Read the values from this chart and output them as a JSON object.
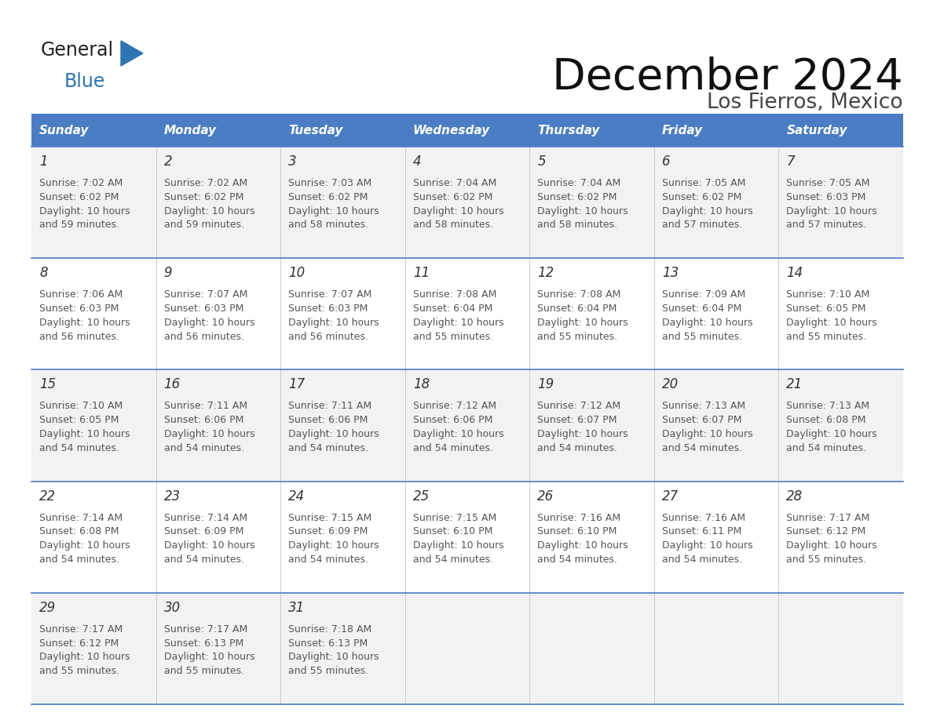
{
  "title": "December 2024",
  "subtitle": "Los Fierros, Mexico",
  "header_color": "#4A7DC4",
  "header_text_color": "#FFFFFF",
  "days_of_week": [
    "Sunday",
    "Monday",
    "Tuesday",
    "Wednesday",
    "Thursday",
    "Friday",
    "Saturday"
  ],
  "row_colors": [
    "#F2F2F2",
    "#FFFFFF",
    "#F2F2F2",
    "#FFFFFF",
    "#F2F2F2"
  ],
  "grid_line_color": "#4A7DC4",
  "day_number_color": "#333333",
  "cell_text_color": "#555555",
  "calendar_data": [
    [
      {
        "day": 1,
        "sunrise": "7:02 AM",
        "sunset": "6:02 PM",
        "daylight_hours": "10 hours",
        "daylight_mins": "and 59 minutes."
      },
      {
        "day": 2,
        "sunrise": "7:02 AM",
        "sunset": "6:02 PM",
        "daylight_hours": "10 hours",
        "daylight_mins": "and 59 minutes."
      },
      {
        "day": 3,
        "sunrise": "7:03 AM",
        "sunset": "6:02 PM",
        "daylight_hours": "10 hours",
        "daylight_mins": "and 58 minutes."
      },
      {
        "day": 4,
        "sunrise": "7:04 AM",
        "sunset": "6:02 PM",
        "daylight_hours": "10 hours",
        "daylight_mins": "and 58 minutes."
      },
      {
        "day": 5,
        "sunrise": "7:04 AM",
        "sunset": "6:02 PM",
        "daylight_hours": "10 hours",
        "daylight_mins": "and 58 minutes."
      },
      {
        "day": 6,
        "sunrise": "7:05 AM",
        "sunset": "6:02 PM",
        "daylight_hours": "10 hours",
        "daylight_mins": "and 57 minutes."
      },
      {
        "day": 7,
        "sunrise": "7:05 AM",
        "sunset": "6:03 PM",
        "daylight_hours": "10 hours",
        "daylight_mins": "and 57 minutes."
      }
    ],
    [
      {
        "day": 8,
        "sunrise": "7:06 AM",
        "sunset": "6:03 PM",
        "daylight_hours": "10 hours",
        "daylight_mins": "and 56 minutes."
      },
      {
        "day": 9,
        "sunrise": "7:07 AM",
        "sunset": "6:03 PM",
        "daylight_hours": "10 hours",
        "daylight_mins": "and 56 minutes."
      },
      {
        "day": 10,
        "sunrise": "7:07 AM",
        "sunset": "6:03 PM",
        "daylight_hours": "10 hours",
        "daylight_mins": "and 56 minutes."
      },
      {
        "day": 11,
        "sunrise": "7:08 AM",
        "sunset": "6:04 PM",
        "daylight_hours": "10 hours",
        "daylight_mins": "and 55 minutes."
      },
      {
        "day": 12,
        "sunrise": "7:08 AM",
        "sunset": "6:04 PM",
        "daylight_hours": "10 hours",
        "daylight_mins": "and 55 minutes."
      },
      {
        "day": 13,
        "sunrise": "7:09 AM",
        "sunset": "6:04 PM",
        "daylight_hours": "10 hours",
        "daylight_mins": "and 55 minutes."
      },
      {
        "day": 14,
        "sunrise": "7:10 AM",
        "sunset": "6:05 PM",
        "daylight_hours": "10 hours",
        "daylight_mins": "and 55 minutes."
      }
    ],
    [
      {
        "day": 15,
        "sunrise": "7:10 AM",
        "sunset": "6:05 PM",
        "daylight_hours": "10 hours",
        "daylight_mins": "and 54 minutes."
      },
      {
        "day": 16,
        "sunrise": "7:11 AM",
        "sunset": "6:06 PM",
        "daylight_hours": "10 hours",
        "daylight_mins": "and 54 minutes."
      },
      {
        "day": 17,
        "sunrise": "7:11 AM",
        "sunset": "6:06 PM",
        "daylight_hours": "10 hours",
        "daylight_mins": "and 54 minutes."
      },
      {
        "day": 18,
        "sunrise": "7:12 AM",
        "sunset": "6:06 PM",
        "daylight_hours": "10 hours",
        "daylight_mins": "and 54 minutes."
      },
      {
        "day": 19,
        "sunrise": "7:12 AM",
        "sunset": "6:07 PM",
        "daylight_hours": "10 hours",
        "daylight_mins": "and 54 minutes."
      },
      {
        "day": 20,
        "sunrise": "7:13 AM",
        "sunset": "6:07 PM",
        "daylight_hours": "10 hours",
        "daylight_mins": "and 54 minutes."
      },
      {
        "day": 21,
        "sunrise": "7:13 AM",
        "sunset": "6:08 PM",
        "daylight_hours": "10 hours",
        "daylight_mins": "and 54 minutes."
      }
    ],
    [
      {
        "day": 22,
        "sunrise": "7:14 AM",
        "sunset": "6:08 PM",
        "daylight_hours": "10 hours",
        "daylight_mins": "and 54 minutes."
      },
      {
        "day": 23,
        "sunrise": "7:14 AM",
        "sunset": "6:09 PM",
        "daylight_hours": "10 hours",
        "daylight_mins": "and 54 minutes."
      },
      {
        "day": 24,
        "sunrise": "7:15 AM",
        "sunset": "6:09 PM",
        "daylight_hours": "10 hours",
        "daylight_mins": "and 54 minutes."
      },
      {
        "day": 25,
        "sunrise": "7:15 AM",
        "sunset": "6:10 PM",
        "daylight_hours": "10 hours",
        "daylight_mins": "and 54 minutes."
      },
      {
        "day": 26,
        "sunrise": "7:16 AM",
        "sunset": "6:10 PM",
        "daylight_hours": "10 hours",
        "daylight_mins": "and 54 minutes."
      },
      {
        "day": 27,
        "sunrise": "7:16 AM",
        "sunset": "6:11 PM",
        "daylight_hours": "10 hours",
        "daylight_mins": "and 54 minutes."
      },
      {
        "day": 28,
        "sunrise": "7:17 AM",
        "sunset": "6:12 PM",
        "daylight_hours": "10 hours",
        "daylight_mins": "and 55 minutes."
      }
    ],
    [
      {
        "day": 29,
        "sunrise": "7:17 AM",
        "sunset": "6:12 PM",
        "daylight_hours": "10 hours",
        "daylight_mins": "and 55 minutes."
      },
      {
        "day": 30,
        "sunrise": "7:17 AM",
        "sunset": "6:13 PM",
        "daylight_hours": "10 hours",
        "daylight_mins": "and 55 minutes."
      },
      {
        "day": 31,
        "sunrise": "7:18 AM",
        "sunset": "6:13 PM",
        "daylight_hours": "10 hours",
        "daylight_mins": "and 55 minutes."
      },
      null,
      null,
      null,
      null
    ]
  ],
  "logo_text_general": "General",
  "logo_text_blue": "Blue"
}
